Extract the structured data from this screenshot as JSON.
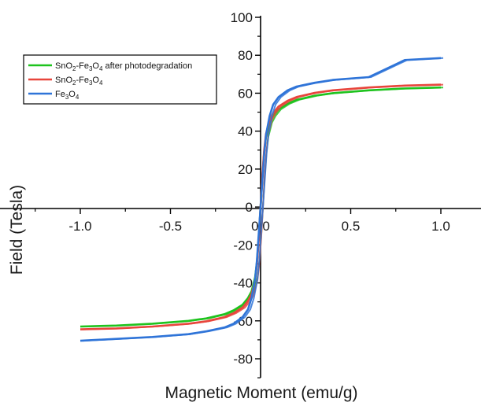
{
  "chart_data": {
    "type": "line",
    "xlabel": "Magnetic Moment (emu/g)",
    "ylabel": "Field (Tesla)",
    "xlim": [
      -1.2,
      1.2
    ],
    "ylim": [
      -90,
      100
    ],
    "x_ticks": [
      -1.0,
      -0.5,
      0.0,
      0.5,
      1.0
    ],
    "x_tick_labels": [
      "-1.0",
      "-0.5",
      "0.0",
      "0.5",
      "1.0"
    ],
    "y_ticks": [
      -80,
      -60,
      -40,
      -20,
      0,
      20,
      40,
      60,
      80,
      100
    ],
    "y_tick_labels": [
      "-80",
      "-60",
      "-40",
      "-20",
      "0",
      "20",
      "40",
      "60",
      "80",
      "100"
    ],
    "legend_position": "top-left",
    "grid": false,
    "series": [
      {
        "name": "SnO2-Fe3O4 after photodegradation",
        "name_parts": [
          [
            "SnO",
            "n"
          ],
          [
            "2",
            "sub"
          ],
          [
            "-Fe",
            "n"
          ],
          [
            "3",
            "sub"
          ],
          [
            "O",
            "n"
          ],
          [
            "4",
            "sub"
          ],
          [
            " after photodegradation",
            "n"
          ]
        ],
        "color": "#1ec31e",
        "x": [
          -1.0,
          -0.8,
          -0.6,
          -0.4,
          -0.3,
          -0.2,
          -0.15,
          -0.1,
          -0.07,
          -0.05,
          -0.03,
          -0.02,
          -0.01,
          0.0,
          0.01,
          0.02,
          0.03,
          0.05,
          0.07,
          0.1,
          0.15,
          0.2,
          0.3,
          0.4,
          0.6,
          0.8,
          1.0
        ],
        "y": [
          -63,
          -62.5,
          -61.5,
          -60,
          -58.7,
          -56.5,
          -54.5,
          -51.5,
          -48,
          -44.5,
          -37,
          -29,
          -16,
          0,
          16,
          29,
          37,
          44.5,
          48,
          51.5,
          54.5,
          56.5,
          58.7,
          60,
          61.5,
          62.5,
          63
        ]
      },
      {
        "name": "SnO2-Fe3O4",
        "name_parts": [
          [
            "SnO",
            "n"
          ],
          [
            "2",
            "sub"
          ],
          [
            "-Fe",
            "n"
          ],
          [
            "3",
            "sub"
          ],
          [
            "O",
            "n"
          ],
          [
            "4",
            "sub"
          ]
        ],
        "color": "#e8453c",
        "x": [
          -1.0,
          -0.8,
          -0.6,
          -0.4,
          -0.3,
          -0.2,
          -0.15,
          -0.1,
          -0.07,
          -0.05,
          -0.03,
          -0.02,
          -0.01,
          0.0,
          0.01,
          0.02,
          0.03,
          0.05,
          0.07,
          0.1,
          0.15,
          0.2,
          0.3,
          0.4,
          0.6,
          0.8,
          1.0
        ],
        "y": [
          -64.5,
          -64,
          -63,
          -61.5,
          -60.2,
          -58,
          -56,
          -53,
          -49.5,
          -46,
          -38.5,
          -30,
          -17,
          0,
          17,
          30,
          38.5,
          46,
          49.5,
          53,
          56,
          58,
          60.2,
          61.5,
          63,
          64,
          64.5
        ]
      },
      {
        "name": "Fe3O4",
        "name_parts": [
          [
            "Fe",
            "n"
          ],
          [
            "3",
            "sub"
          ],
          [
            "O",
            "n"
          ],
          [
            "4",
            "sub"
          ]
        ],
        "color": "#2f74d8",
        "x": [
          -1.0,
          -0.8,
          -0.6,
          -0.4,
          -0.3,
          -0.2,
          -0.15,
          -0.1,
          -0.07,
          -0.05,
          -0.03,
          -0.02,
          -0.01,
          0.0,
          0.01,
          0.02,
          0.03,
          0.05,
          0.07,
          0.1,
          0.15,
          0.2,
          0.3,
          0.4,
          0.6,
          0.8,
          1.0
        ],
        "y": [
          -70.5,
          -69.5,
          -68.5,
          -67,
          -65.5,
          -63.5,
          -61.5,
          -58,
          -54,
          -48,
          -38,
          -28,
          -14,
          0,
          14,
          28,
          38,
          48,
          54,
          58,
          61.5,
          63.5,
          65.5,
          67,
          68.5,
          77.5,
          78.5
        ]
      }
    ]
  }
}
